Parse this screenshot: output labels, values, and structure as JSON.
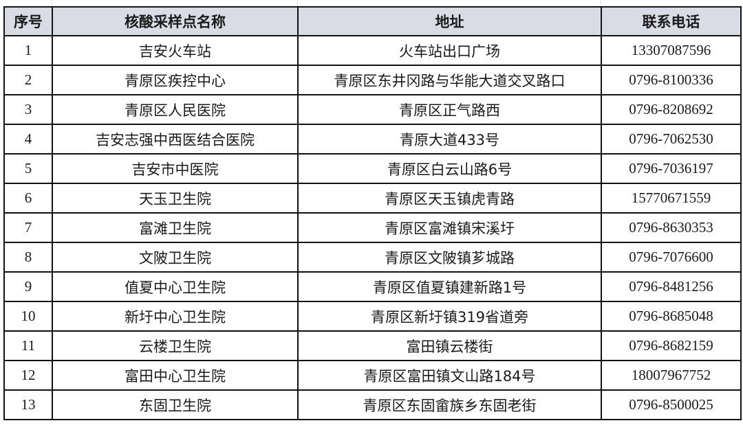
{
  "table": {
    "headers": [
      "序号",
      "核酸采样点名称",
      "地址",
      "联系电话"
    ],
    "header_bg": "#d8dce5",
    "rows": [
      [
        "1",
        "吉安火车站",
        "火车站出口广场",
        "13307087596"
      ],
      [
        "2",
        "青原区疾控中心",
        "青原区东井冈路与华能大道交叉路口",
        "0796-8100336"
      ],
      [
        "3",
        "青原区人民医院",
        "青原区正气路西",
        "0796-8208692"
      ],
      [
        "4",
        "吉安志强中西医结合医院",
        "青原大道433号",
        "0796-7062530"
      ],
      [
        "5",
        "吉安市中医院",
        "青原区白云山路6号",
        "0796-7036197"
      ],
      [
        "6",
        "天玉卫生院",
        "青原区天玉镇虎青路",
        "15770671559"
      ],
      [
        "7",
        "富滩卫生院",
        "青原区富滩镇宋溪圩",
        "0796-8630353"
      ],
      [
        "8",
        "文陂卫生院",
        "青原区文陂镇芗城路",
        "0796-7076600"
      ],
      [
        "9",
        "值夏中心卫生院",
        "青原区值夏镇建新路1号",
        "0796-8481256"
      ],
      [
        "10",
        "新圩中心卫生院",
        "青原区新圩镇319省道旁",
        "0796-8685048"
      ],
      [
        "11",
        "云楼卫生院",
        "富田镇云楼街",
        "0796-8682159"
      ],
      [
        "12",
        "富田中心卫生院",
        "青原区富田镇文山路184号",
        "18007967752"
      ],
      [
        "13",
        "东固卫生院",
        "青原区东固畲族乡东固老街",
        "0796-8500025"
      ]
    ]
  }
}
